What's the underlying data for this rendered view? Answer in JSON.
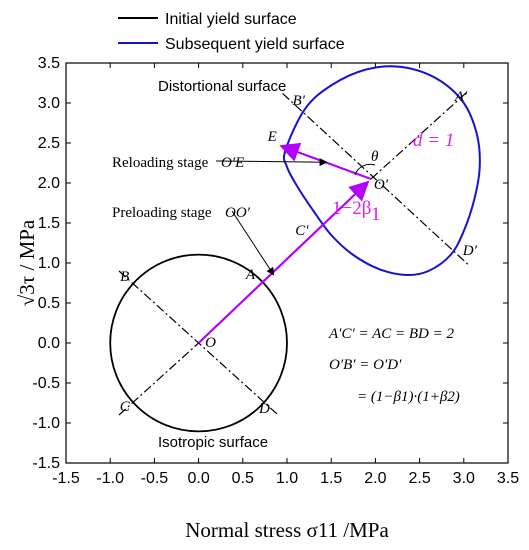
{
  "chart_data": {
    "type": "line",
    "xlabel": "Normal stress σ11 /MPa",
    "ylabel": "√3τ / MPa",
    "xlim": [
      -1.5,
      3.5
    ],
    "ylim": [
      -1.5,
      3.5
    ],
    "xticks": [
      "-1.5",
      "-1.0",
      "-0.5",
      "0.0",
      "0.5",
      "1.0",
      "1.5",
      "2.0",
      "2.5",
      "3.0",
      "3.5"
    ],
    "yticks": [
      "-1.5",
      "-1.0",
      "-0.5",
      "0.0",
      "0.5",
      "1.0",
      "1.5",
      "2.0",
      "2.5",
      "3.0",
      "3.5"
    ],
    "legend_position": "top-left",
    "series": [
      {
        "name": "Initial yield surface",
        "color": "#000000",
        "shape": "circle",
        "center": [
          0,
          0
        ],
        "radius": 1.0
      },
      {
        "name": "Subsequent yield surface",
        "color": "#1414d0",
        "shape": "closed-curve",
        "points": [
          [
            0.98,
            2.4
          ],
          [
            1.2,
            2.92
          ],
          [
            1.5,
            3.22
          ],
          [
            1.9,
            3.42
          ],
          [
            2.3,
            3.45
          ],
          [
            2.7,
            3.3
          ],
          [
            3.0,
            3.0
          ],
          [
            3.15,
            2.6
          ],
          [
            3.18,
            2.2
          ],
          [
            3.12,
            1.8
          ],
          [
            3.0,
            1.4
          ],
          [
            2.85,
            1.1
          ],
          [
            2.6,
            0.9
          ],
          [
            2.35,
            0.85
          ],
          [
            2.05,
            0.92
          ],
          [
            1.75,
            1.1
          ],
          [
            1.5,
            1.35
          ],
          [
            1.3,
            1.65
          ],
          [
            1.12,
            1.95
          ],
          [
            1.0,
            2.2
          ],
          [
            0.98,
            2.4
          ]
        ]
      }
    ],
    "points": [
      {
        "label": "O",
        "x": 0.0,
        "y": 0.0
      },
      {
        "label": "A",
        "x": 0.7,
        "y": 0.7
      },
      {
        "label": "B",
        "x": -0.7,
        "y": 0.7
      },
      {
        "label": "C",
        "x": -0.7,
        "y": -0.7
      },
      {
        "label": "D",
        "x": 0.7,
        "y": -0.7
      },
      {
        "label": "O′",
        "x": 1.95,
        "y": 2.05
      },
      {
        "label": "A′",
        "x": 2.9,
        "y": 3.0
      },
      {
        "label": "B′",
        "x": 1.2,
        "y": 2.85
      },
      {
        "label": "C′",
        "x": 1.35,
        "y": 1.45
      },
      {
        "label": "D′",
        "x": 3.0,
        "y": 1.1
      },
      {
        "label": "E",
        "x": 0.9,
        "y": 2.45
      }
    ],
    "annotations": {
      "distortional": "Distortional surface",
      "isotropic": "Isotropic surface",
      "reloading": "Reloading stage",
      "reloading_math": "O′E",
      "preloading": "Preloading stage",
      "preloading_math": "OO′",
      "d_label": "d = 1",
      "beta_label": "1−2β",
      "beta_sub": "1",
      "theta": "θ",
      "eq1": "A′C′ = AC = BD = 2",
      "eq2": "O′B′ = O′D′",
      "eq3": "= (1−β1)·(1+β2)"
    }
  },
  "colors": {
    "blue": "#1414d0",
    "magenta": "#b400ff",
    "black": "#000000"
  }
}
